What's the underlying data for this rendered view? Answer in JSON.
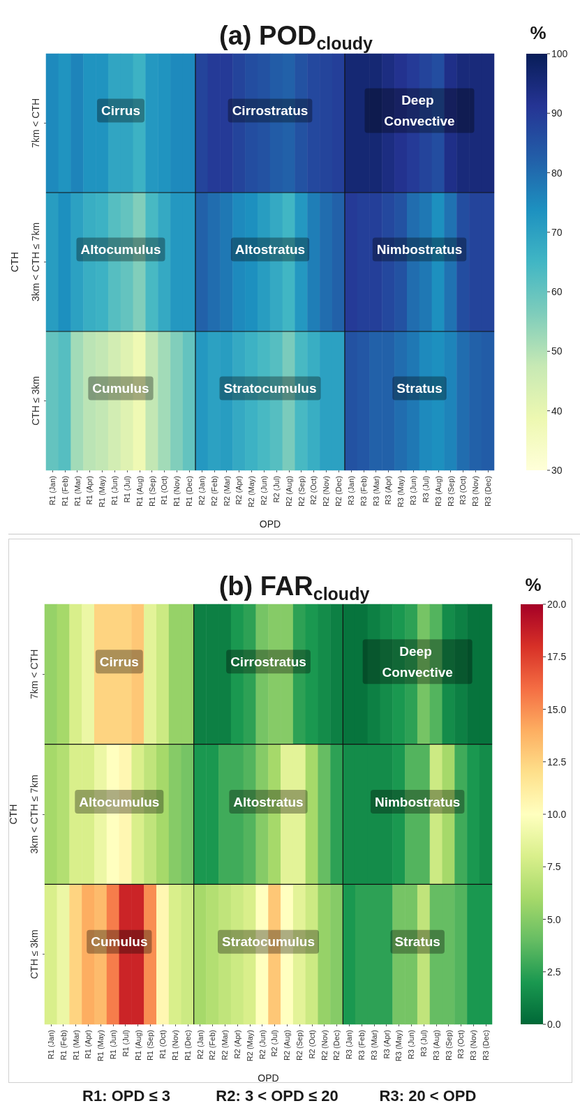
{
  "chart_data": [
    {
      "type": "heatmap",
      "title": "(a) POD$_{cloudy}$",
      "xlabel": "OPD",
      "ylabel": "CTH",
      "clabel": "%",
      "categories": [
        "R1 (Jan)",
        "R1 (Feb)",
        "R1 (Mar)",
        "R1 (Apr)",
        "R1 (May)",
        "R1 (Jun)",
        "R1 (Jul)",
        "R1 (Aug)",
        "R1 (Sep)",
        "R1 (Oct)",
        "R1 (Nov)",
        "R1 (Dec)",
        "R2 (Jan)",
        "R2 (Feb)",
        "R2 (Mar)",
        "R2 (Apr)",
        "R2 (May)",
        "R2 (Jun)",
        "R2 (Jul)",
        "R2 (Aug)",
        "R2 (Sep)",
        "R2 (Oct)",
        "R2 (Nov)",
        "R2 (Dec)",
        "R3 (Jan)",
        "R3 (Feb)",
        "R3 (Mar)",
        "R3 (Apr)",
        "R3 (May)",
        "R3 (Jun)",
        "R3 (Jul)",
        "R3 (Aug)",
        "R3 (Sep)",
        "R3 (Oct)",
        "R3 (Nov)",
        "R3 (Dec)"
      ],
      "y_categories": [
        "7km < CTH",
        "3km < CTH ≤ 7km",
        "CTH ≤ 3km"
      ],
      "cells": [
        [
          75,
          73,
          76,
          73,
          73,
          69,
          69,
          66,
          72,
          73,
          75,
          75,
          88,
          90,
          90,
          88,
          86,
          85,
          83,
          82,
          85,
          87,
          88,
          89,
          96,
          96,
          96,
          94,
          92,
          90,
          88,
          86,
          93,
          95,
          95,
          95
        ],
        [
          71,
          74,
          70,
          67,
          66,
          62,
          60,
          56,
          64,
          68,
          72,
          72,
          82,
          80,
          78,
          75,
          74,
          71,
          68,
          65,
          72,
          77,
          80,
          82,
          90,
          89,
          89,
          87,
          85,
          80,
          78,
          74,
          79,
          86,
          88,
          88
        ],
        [
          60,
          62,
          52,
          49,
          48,
          45,
          42,
          38,
          48,
          52,
          56,
          60,
          72,
          70,
          71,
          68,
          66,
          64,
          62,
          57,
          64,
          67,
          70,
          70,
          85,
          84,
          82,
          82,
          80,
          78,
          75,
          74,
          76,
          80,
          82,
          83
        ]
      ],
      "clim": [
        30,
        100
      ],
      "cticks": [
        30,
        40,
        50,
        60,
        70,
        80,
        90,
        100
      ],
      "annotations": [
        "Cirrus",
        "Cirrostratus",
        "Deep Convective",
        "Altocumulus",
        "Altostratus",
        "Nimbostratus",
        "Cumulus",
        "Stratocumulus",
        "Stratus"
      ]
    },
    {
      "type": "heatmap",
      "title": "(b) FAR$_{cloudy}$",
      "xlabel": "OPD",
      "ylabel": "CTH",
      "clabel": "%",
      "categories": [
        "R1 (Jan)",
        "R1 (Feb)",
        "R1 (Mar)",
        "R1 (Apr)",
        "R1 (May)",
        "R1 (Jun)",
        "R1 (Jul)",
        "R1 (Aug)",
        "R1 (Sep)",
        "R1 (Oct)",
        "R1 (Nov)",
        "R1 (Dec)",
        "R2 (Jan)",
        "R2 (Feb)",
        "R2 (Mar)",
        "R2 (Apr)",
        "R2 (May)",
        "R2 (Jun)",
        "R2 (Jul)",
        "R2 (Aug)",
        "R2 (Sep)",
        "R2 (Oct)",
        "R2 (Nov)",
        "R2 (Dec)",
        "R3 (Jan)",
        "R3 (Feb)",
        "R3 (Mar)",
        "R3 (Apr)",
        "R3 (May)",
        "R3 (Jun)",
        "R3 (Jul)",
        "R3 (Aug)",
        "R3 (Sep)",
        "R3 (Oct)",
        "R3 (Nov)",
        "R3 (Dec)"
      ],
      "y_categories": [
        "7km < CTH",
        "3km < CTH ≤ 7km",
        "CTH ≤ 3km"
      ],
      "cells": [
        [
          5.5,
          6,
          8,
          9,
          12.5,
          12.5,
          12.5,
          13,
          8.5,
          7.5,
          5.5,
          5.5,
          1,
          1,
          1,
          2,
          2.5,
          4.5,
          5,
          5,
          2.5,
          2,
          1.5,
          1,
          0.5,
          0.5,
          1,
          1.5,
          2,
          2.5,
          4.5,
          3.5,
          1.5,
          1,
          0.5,
          0.5
        ],
        [
          6,
          6.5,
          8,
          8,
          9,
          10,
          10.5,
          8,
          7,
          6,
          5,
          4.5,
          2,
          2,
          3,
          3,
          3.5,
          5,
          6,
          8.5,
          8.5,
          6,
          4,
          2.5,
          1.5,
          1.5,
          1.5,
          1.5,
          2,
          3.5,
          3.5,
          7.5,
          6,
          3,
          2,
          1.5
        ],
        [
          8,
          9,
          12.5,
          14,
          13.5,
          15.5,
          18.5,
          18.5,
          15,
          10.5,
          8,
          7.5,
          6,
          6.5,
          7,
          7.5,
          8,
          10,
          13,
          10,
          8.5,
          7.5,
          5.5,
          5,
          2,
          2.5,
          2.5,
          2.5,
          4.5,
          4.5,
          7,
          4,
          4,
          3.5,
          2,
          2
        ]
      ],
      "clim": [
        0,
        20
      ],
      "cticks": [
        {
          "value": 0,
          "label": "0.0"
        },
        {
          "value": 2.5,
          "label": "2.5"
        },
        {
          "value": 5,
          "label": "5.0"
        },
        {
          "value": 7.5,
          "label": "7.5"
        },
        {
          "value": 10,
          "label": "10.0"
        },
        {
          "value": 12.5,
          "label": "12.5"
        },
        {
          "value": 15,
          "label": "15.0"
        },
        {
          "value": 17.5,
          "label": "17.5"
        },
        {
          "value": 20,
          "label": "20.0"
        }
      ],
      "annotations": [
        "Cirrus",
        "Cirrostratus",
        "Deep Convective",
        "Altocumulus",
        "Altostratus",
        "Nimbostratus",
        "Cumulus",
        "Stratocumulus",
        "Stratus",
        "R1: OPD ≤ 3",
        "R2: 3 < OPD ≤ 20",
        "R3: 20 < OPD"
      ]
    }
  ]
}
